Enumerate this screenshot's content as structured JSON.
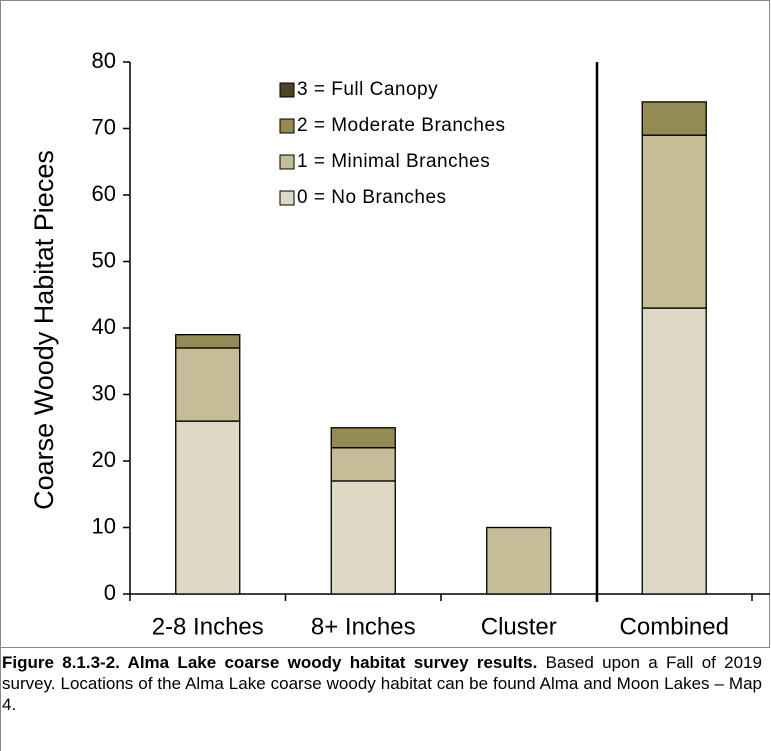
{
  "chart_data": {
    "type": "stacked_bar",
    "y_label": "Coarse Woody Habitat Pieces",
    "categories": [
      "2-8 Inches",
      "8+ Inches",
      "Cluster",
      "Combined"
    ],
    "series": [
      {
        "name": "0 = No Branches",
        "color": "#ddd9c4",
        "values": [
          26,
          17,
          0,
          43
        ]
      },
      {
        "name": "1 = Minimal Branches",
        "color": "#c4bd97",
        "values": [
          11,
          5,
          10,
          26
        ]
      },
      {
        "name": "2 = Moderate Branches",
        "color": "#948a54",
        "values": [
          2,
          3,
          0,
          5
        ]
      },
      {
        "name": "3 = Full Canopy",
        "color": "#4a452a",
        "values": [
          0,
          0,
          0,
          0
        ]
      }
    ],
    "ylim": [
      0,
      80
    ],
    "yticks": [
      0,
      10,
      20,
      30,
      40,
      50,
      60,
      70,
      80
    ],
    "grid": false,
    "legend": "upper center"
  },
  "figure_caption": {
    "title": "Figure 8.1.3-2.  Alma Lake coarse woody habitat survey results.",
    "text": "Based upon a Fall of 2019 survey.  Locations of the Alma Lake coarse woody habitat can be found Alma and Moon Lakes – Map 4."
  }
}
